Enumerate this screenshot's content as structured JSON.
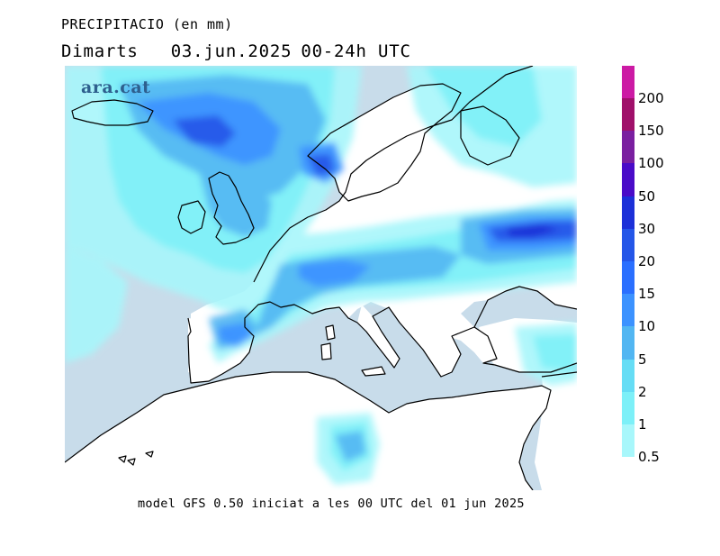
{
  "header": {
    "title": "PRECIPITACIO (en mm)",
    "day": "Dimarts",
    "date": "03.jun.2025",
    "range": "00-24h UTC"
  },
  "logo": "ara.cat",
  "footer": "model GFS 0.50 iniciat a les 00 UTC del 01 jun 2025",
  "legend": {
    "levels": [
      "200",
      "150",
      "100",
      "50",
      "30",
      "20",
      "15",
      "10",
      "5",
      "2",
      "1",
      "0.5"
    ],
    "colors": [
      "#cc1aa4",
      "#a0106a",
      "#7a1fa0",
      "#4a0bc8",
      "#1c30d8",
      "#2456e8",
      "#2a6fff",
      "#3c92ff",
      "#52b6f2",
      "#66ddf5",
      "#7df0f8",
      "#a8f7fb"
    ]
  },
  "map": {
    "sea_color": "#c8dcea",
    "land_color": "#ffffff",
    "coast_color": "#000000"
  }
}
